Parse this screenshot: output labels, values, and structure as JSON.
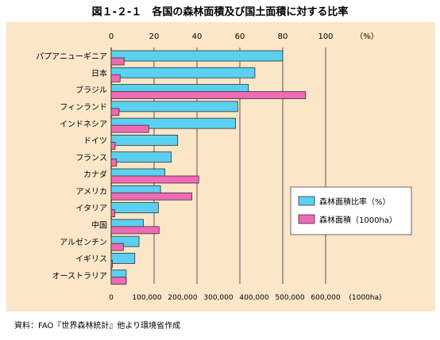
{
  "title": "図１-２-１　各国の森林面積及び国土面積に対する比率",
  "source": "資料：FAO『世界森林統計』他より環境省作成",
  "chart_data": {
    "type": "bar",
    "orientation": "horizontal",
    "categories": [
      "パプアニューギニア",
      "日本",
      "ブラジル",
      "フィンランド",
      "インドネシア",
      "ドイツ",
      "フランス",
      "カナダ",
      "アメリカ",
      "イタリア",
      "中国",
      "アルゼンチン",
      "イギリス",
      "オーストラリア"
    ],
    "series": [
      {
        "name": "森林面積比率（%）",
        "color": "#5bd0f0",
        "axis": "top",
        "values": [
          80,
          67,
          64,
          59,
          58,
          31,
          28,
          25,
          23,
          22,
          15,
          13,
          11,
          7
        ]
      },
      {
        "name": "森林面積（1000ha）",
        "color": "#f06ab6",
        "axis": "bottom",
        "values": [
          36000,
          25000,
          544000,
          22000,
          105000,
          11000,
          15000,
          245000,
          226000,
          10000,
          134000,
          34000,
          3000,
          42000
        ]
      }
    ],
    "top_axis": {
      "min": 0,
      "max": 100,
      "ticks": [
        "0",
        "20",
        "40",
        "60",
        "80",
        "100"
      ],
      "unit_label": "（%）"
    },
    "bottom_axis": {
      "min": 0,
      "max": 600000,
      "ticks": [
        "0",
        "100,000",
        "200,000",
        "300,000",
        "400,000",
        "500,000",
        "600,000"
      ],
      "unit_label": "(1000ha)"
    },
    "grid": true,
    "legend_position": "right"
  }
}
